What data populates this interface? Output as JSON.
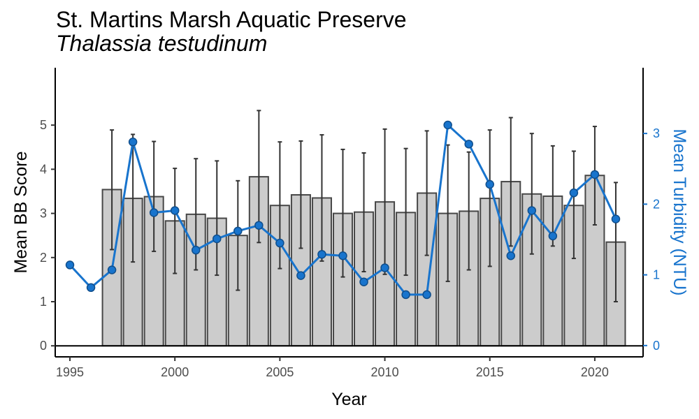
{
  "chart_data": {
    "type": "bar",
    "title": "St. Martins Marsh Aquatic Preserve",
    "subtitle": "Thalassia testudinum",
    "xlabel": "Year",
    "ylabel": "Mean BB Score",
    "y2label": "Mean Turbidity (NTU)",
    "xlim": [
      1994.3,
      2022.3
    ],
    "ylim": [
      -0.25,
      6.3
    ],
    "y2lim": [
      -0.16,
      3.93
    ],
    "x_ticks": [
      1995,
      2000,
      2005,
      2010,
      2015,
      2020
    ],
    "y_ticks": [
      0,
      1,
      2,
      3,
      4,
      5
    ],
    "y2_ticks": [
      0,
      1,
      2,
      3
    ],
    "grid": false,
    "colors": {
      "bar_fill": "#cccccc",
      "bar_stroke": "#474747",
      "line": "#1874cd",
      "point_fill": "#1874cd",
      "point_stroke": "#104e8b",
      "axis": "#000000",
      "right_axis": "#1874cd"
    },
    "bars": {
      "name": "Mean BB Score",
      "x": [
        1997,
        1998,
        1999,
        2000,
        2001,
        2002,
        2003,
        2004,
        2005,
        2006,
        2007,
        2008,
        2009,
        2010,
        2011,
        2012,
        2013,
        2014,
        2015,
        2016,
        2017,
        2018,
        2019,
        2020,
        2021
      ],
      "values": [
        3.54,
        3.34,
        3.38,
        2.83,
        2.98,
        2.89,
        2.5,
        3.83,
        3.18,
        3.42,
        3.35,
        3.0,
        3.03,
        3.26,
        3.02,
        3.46,
        3.0,
        3.05,
        3.34,
        3.72,
        3.44,
        3.39,
        3.18,
        3.86,
        2.35
      ],
      "error_low": [
        2.18,
        1.9,
        2.14,
        1.64,
        1.72,
        1.6,
        1.26,
        2.34,
        1.75,
        2.21,
        1.92,
        1.56,
        1.68,
        1.62,
        1.6,
        2.05,
        1.46,
        1.72,
        1.8,
        2.26,
        2.08,
        2.26,
        1.98,
        2.74,
        1.0
      ],
      "error_high": [
        4.89,
        4.79,
        4.63,
        4.02,
        4.24,
        4.19,
        3.74,
        5.33,
        4.62,
        4.64,
        4.78,
        4.45,
        4.37,
        4.91,
        4.47,
        4.87,
        4.55,
        4.39,
        4.89,
        5.17,
        4.81,
        4.53,
        4.41,
        4.97,
        3.7
      ]
    },
    "line": {
      "name": "Mean Turbidity (NTU)",
      "x": [
        1995,
        1996,
        1997,
        1998,
        1999,
        2000,
        2001,
        2002,
        2003,
        2004,
        2005,
        2006,
        2007,
        2008,
        2009,
        2010,
        2011,
        2012,
        2013,
        2014,
        2015,
        2016,
        2017,
        2018,
        2019,
        2020,
        2021
      ],
      "values": [
        1.14,
        0.82,
        1.07,
        2.88,
        1.88,
        1.91,
        1.35,
        1.51,
        1.62,
        1.7,
        1.45,
        0.99,
        1.29,
        1.27,
        0.9,
        1.1,
        0.72,
        0.72,
        3.12,
        2.85,
        2.28,
        1.27,
        1.91,
        1.55,
        2.16,
        2.42,
        1.79
      ]
    }
  }
}
